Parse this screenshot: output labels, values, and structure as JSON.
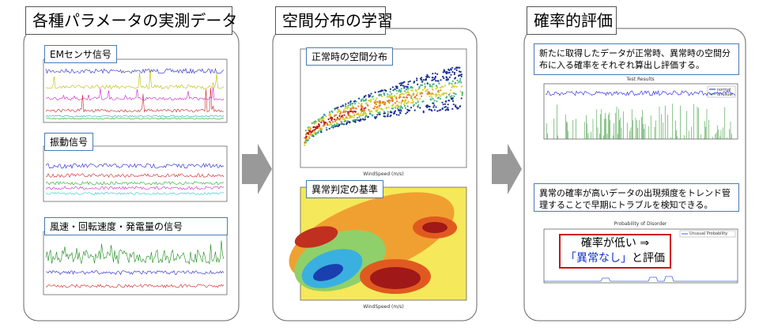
{
  "panels": [
    {
      "title": "各種パラメータの実測データ",
      "charts": [
        {
          "label": "EMセンサ信号"
        },
        {
          "label": "振動信号"
        },
        {
          "label": "風速・回転速度・発電量の信号"
        }
      ]
    },
    {
      "title": "空間分布の学習",
      "charts": [
        {
          "label": "正常時の空間分布",
          "x_label": "WindSpeed (m/s)"
        },
        {
          "label": "異常判定の基準",
          "x_label": "WindSpeed (m/s)"
        }
      ]
    },
    {
      "title": "確率的評価",
      "descriptions": [
        "新たに取得したデータが正常時、異常時の空間分布に入る確率をそれぞれ算出し評価する。",
        "異常の確率が高いデータの出現頻度をトレンド管理することで早期にトラブルを検知できる。"
      ],
      "charts": [
        {
          "title": "Test Results",
          "legend": [
            "normal",
            "unusual"
          ]
        },
        {
          "title": "Probability of Disorder",
          "legend": [
            "Unusual Probability"
          ]
        }
      ],
      "callout": {
        "line1": "確率が低い ⇒",
        "highlight": "「異常なし」",
        "suffix": "と評価"
      }
    }
  ]
}
